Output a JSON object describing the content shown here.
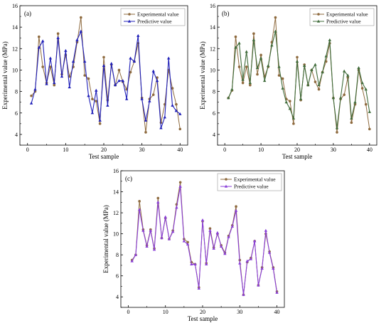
{
  "chart_data": [
    {
      "type": "line",
      "panel_label": "(a)",
      "xlabel": "Test sample",
      "ylabel": "Experimental value (MPa)",
      "xlim": [
        -2,
        42
      ],
      "ylim": [
        3,
        16
      ],
      "xticks": [
        "0",
        "10",
        "20",
        "30",
        "40"
      ],
      "yticks": [
        "4",
        "6",
        "8",
        "10",
        "12",
        "14",
        "16"
      ],
      "legend_position": "top-right",
      "x": [
        1,
        2,
        3,
        4,
        5,
        6,
        7,
        8,
        9,
        10,
        11,
        12,
        13,
        14,
        15,
        16,
        17,
        18,
        19,
        20,
        21,
        22,
        23,
        24,
        25,
        26,
        27,
        28,
        29,
        30,
        31,
        32,
        33,
        34,
        35,
        36,
        37,
        38,
        39,
        40
      ],
      "series": [
        {
          "name": "Experimental value",
          "color": "#8e6a3e",
          "marker": "circle",
          "values": [
            7.6,
            8.0,
            13.1,
            10.3,
            8.8,
            10.3,
            8.6,
            13.4,
            9.6,
            11.4,
            9.4,
            10.3,
            12.6,
            14.9,
            9.5,
            9.2,
            7.3,
            7.1,
            5.0,
            11.2,
            7.2,
            10.5,
            8.6,
            10.0,
            8.9,
            8.2,
            9.8,
            10.8,
            12.5,
            7.4,
            4.2,
            7.3,
            7.7,
            9.3,
            5.1,
            6.8,
            10.0,
            8.3,
            6.8,
            4.5
          ]
        },
        {
          "name": "Predictive value",
          "color": "#1f1fb8",
          "marker": "triangle",
          "values": [
            6.9,
            8.2,
            12.1,
            12.7,
            8.7,
            11.1,
            8.8,
            13.0,
            9.4,
            11.8,
            8.4,
            10.8,
            12.8,
            13.6,
            10.8,
            7.6,
            6.0,
            8.1,
            5.3,
            10.4,
            6.7,
            10.6,
            8.6,
            9.0,
            9.0,
            7.3,
            11.1,
            10.8,
            13.2,
            7.3,
            5.3,
            7.1,
            9.9,
            9.0,
            4.6,
            5.6,
            11.1,
            6.7,
            6.2,
            5.9
          ]
        }
      ]
    },
    {
      "type": "line",
      "panel_label": "(b)",
      "xlabel": "Test sample",
      "ylabel": "Experimental value (MPa)",
      "xlim": [
        -2,
        42
      ],
      "ylim": [
        3,
        16
      ],
      "xticks": [
        "0",
        "10",
        "20",
        "30",
        "40"
      ],
      "yticks": [
        "4",
        "6",
        "8",
        "10",
        "12",
        "14",
        "16"
      ],
      "legend_position": "top-right",
      "x": [
        1,
        2,
        3,
        4,
        5,
        6,
        7,
        8,
        9,
        10,
        11,
        12,
        13,
        14,
        15,
        16,
        17,
        18,
        19,
        20,
        21,
        22,
        23,
        24,
        25,
        26,
        27,
        28,
        29,
        30,
        31,
        32,
        33,
        34,
        35,
        36,
        37,
        38,
        39,
        40
      ],
      "series": [
        {
          "name": "Experimental value",
          "color": "#8e6a3e",
          "marker": "circle",
          "values": [
            7.4,
            8.1,
            13.1,
            10.3,
            8.8,
            10.3,
            8.6,
            13.4,
            9.6,
            11.4,
            9.4,
            10.3,
            12.6,
            14.9,
            9.5,
            9.2,
            7.3,
            7.1,
            5.0,
            11.2,
            7.2,
            10.5,
            8.6,
            10.0,
            8.9,
            8.2,
            9.8,
            10.8,
            12.5,
            7.4,
            4.2,
            7.3,
            7.7,
            9.3,
            5.1,
            6.8,
            10.0,
            8.3,
            6.8,
            4.5
          ]
        },
        {
          "name": "Predictive value",
          "color": "#3f6b3a",
          "marker": "triangle",
          "values": [
            7.4,
            8.2,
            12.1,
            12.5,
            9.1,
            11.7,
            8.8,
            12.8,
            10.2,
            11.1,
            9.0,
            10.4,
            12.3,
            13.6,
            10.3,
            8.3,
            7.0,
            6.4,
            5.5,
            10.8,
            7.3,
            10.4,
            8.6,
            10.0,
            10.5,
            8.6,
            9.8,
            11.3,
            12.8,
            7.4,
            4.6,
            7.4,
            9.9,
            9.5,
            5.5,
            7.0,
            10.2,
            8.8,
            8.2,
            6.1
          ]
        }
      ]
    },
    {
      "type": "line",
      "panel_label": "(c)",
      "xlabel": "Test sample",
      "ylabel": "Experimental value (MPa)",
      "xlim": [
        -2,
        42
      ],
      "ylim": [
        3,
        16
      ],
      "xticks": [
        "0",
        "10",
        "20",
        "30",
        "40"
      ],
      "yticks": [
        "4",
        "6",
        "8",
        "10",
        "12",
        "14",
        "16"
      ],
      "legend_position": "top-right",
      "x": [
        1,
        2,
        3,
        4,
        5,
        6,
        7,
        8,
        9,
        10,
        11,
        12,
        13,
        14,
        15,
        16,
        17,
        18,
        19,
        20,
        21,
        22,
        23,
        24,
        25,
        26,
        27,
        28,
        29,
        30,
        31,
        32,
        33,
        34,
        35,
        36,
        37,
        38,
        39,
        40
      ],
      "series": [
        {
          "name": "Experimental value",
          "color": "#8e6a3e",
          "marker": "circle",
          "values": [
            7.5,
            8.0,
            13.1,
            10.4,
            8.9,
            10.4,
            8.6,
            13.4,
            9.6,
            11.5,
            9.5,
            10.3,
            12.8,
            14.9,
            9.5,
            9.2,
            7.3,
            7.1,
            4.9,
            11.2,
            7.2,
            10.5,
            8.7,
            10.0,
            8.9,
            8.2,
            9.8,
            10.8,
            12.6,
            7.5,
            4.2,
            7.3,
            7.7,
            9.3,
            5.1,
            6.8,
            10.0,
            8.3,
            6.8,
            4.5
          ]
        },
        {
          "name": "Predictive value",
          "color": "#8a3fd8",
          "marker": "triangle",
          "values": [
            7.4,
            8.0,
            12.3,
            10.3,
            8.8,
            10.3,
            8.5,
            13.0,
            9.6,
            11.6,
            9.5,
            10.2,
            12.5,
            14.5,
            9.3,
            9.0,
            7.1,
            7.1,
            4.8,
            11.3,
            7.1,
            10.3,
            8.6,
            10.1,
            8.8,
            8.1,
            9.7,
            10.7,
            12.2,
            7.2,
            4.2,
            7.4,
            7.6,
            9.3,
            5.1,
            6.7,
            10.3,
            8.2,
            6.7,
            4.4
          ]
        }
      ]
    }
  ]
}
